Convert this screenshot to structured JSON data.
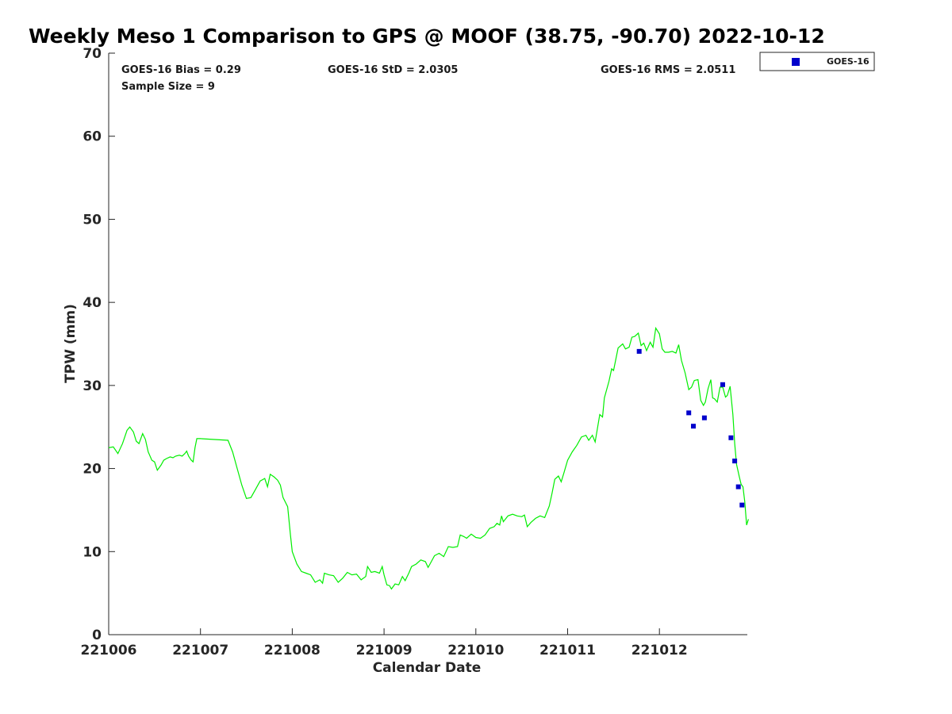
{
  "chart_data": {
    "type": "line",
    "title": "Weekly Meso 1 Comparison to GPS @ MOOF (38.75, -90.70) 2022-10-12",
    "xlabel": "Calendar Date",
    "ylabel": "TPW (mm)",
    "ylim": [
      0,
      70
    ],
    "xlim": [
      0,
      6.95
    ],
    "y_ticks": [
      0,
      10,
      20,
      30,
      40,
      50,
      60,
      70
    ],
    "x_ticks": [
      {
        "x": 0,
        "label": "221006"
      },
      {
        "x": 1,
        "label": "221007"
      },
      {
        "x": 2,
        "label": "221008"
      },
      {
        "x": 3,
        "label": "221009"
      },
      {
        "x": 4,
        "label": "221010"
      },
      {
        "x": 5,
        "label": "221011"
      },
      {
        "x": 6,
        "label": "221012"
      }
    ],
    "stats": {
      "bias": "GOES-16 Bias = 0.29",
      "std": "GOES-16 StD = 2.0305",
      "rms": "GOES-16 RMS = 2.0511",
      "sample": "Sample Size = 9"
    },
    "grid": false,
    "legend_position": "top-right outside plot",
    "series": [
      {
        "color": "#00ee00",
        "kind": "line",
        "points": [
          [
            0.0,
            22.5
          ],
          [
            0.05,
            22.6
          ],
          [
            0.1,
            21.8
          ],
          [
            0.15,
            23.0
          ],
          [
            0.2,
            24.6
          ],
          [
            0.23,
            25.0
          ],
          [
            0.27,
            24.4
          ],
          [
            0.3,
            23.3
          ],
          [
            0.33,
            23.0
          ],
          [
            0.37,
            24.2
          ],
          [
            0.4,
            23.5
          ],
          [
            0.43,
            22.0
          ],
          [
            0.47,
            21.0
          ],
          [
            0.5,
            20.8
          ],
          [
            0.53,
            19.8
          ],
          [
            0.57,
            20.4
          ],
          [
            0.6,
            21.0
          ],
          [
            0.63,
            21.2
          ],
          [
            0.67,
            21.4
          ],
          [
            0.7,
            21.3
          ],
          [
            0.73,
            21.5
          ],
          [
            0.77,
            21.6
          ],
          [
            0.8,
            21.5
          ],
          [
            0.83,
            21.8
          ],
          [
            0.85,
            22.1
          ],
          [
            0.87,
            21.5
          ],
          [
            0.9,
            21.0
          ],
          [
            0.92,
            20.8
          ],
          [
            0.94,
            22.5
          ],
          [
            0.96,
            23.6
          ],
          [
            1.0,
            23.6
          ],
          [
            1.3,
            23.4
          ],
          [
            1.35,
            22.0
          ],
          [
            1.4,
            20.0
          ],
          [
            1.45,
            18.0
          ],
          [
            1.5,
            16.4
          ],
          [
            1.55,
            16.5
          ],
          [
            1.6,
            17.5
          ],
          [
            1.65,
            18.5
          ],
          [
            1.7,
            18.8
          ],
          [
            1.73,
            17.8
          ],
          [
            1.76,
            19.3
          ],
          [
            1.8,
            19.0
          ],
          [
            1.84,
            18.6
          ],
          [
            1.87,
            18.0
          ],
          [
            1.9,
            16.5
          ],
          [
            1.95,
            15.4
          ],
          [
            1.98,
            12.0
          ],
          [
            2.0,
            10.0
          ],
          [
            2.05,
            8.5
          ],
          [
            2.1,
            7.6
          ],
          [
            2.15,
            7.4
          ],
          [
            2.2,
            7.2
          ],
          [
            2.25,
            6.3
          ],
          [
            2.3,
            6.6
          ],
          [
            2.33,
            6.2
          ],
          [
            2.35,
            7.4
          ],
          [
            2.4,
            7.2
          ],
          [
            2.45,
            7.1
          ],
          [
            2.5,
            6.3
          ],
          [
            2.55,
            6.8
          ],
          [
            2.6,
            7.5
          ],
          [
            2.65,
            7.2
          ],
          [
            2.7,
            7.3
          ],
          [
            2.75,
            6.6
          ],
          [
            2.8,
            7.0
          ],
          [
            2.82,
            8.2
          ],
          [
            2.86,
            7.5
          ],
          [
            2.9,
            7.6
          ],
          [
            2.95,
            7.4
          ],
          [
            2.98,
            8.2
          ],
          [
            3.0,
            7.2
          ],
          [
            3.03,
            6.0
          ],
          [
            3.06,
            5.9
          ],
          [
            3.08,
            5.5
          ],
          [
            3.12,
            6.1
          ],
          [
            3.16,
            6.0
          ],
          [
            3.2,
            7.0
          ],
          [
            3.23,
            6.5
          ],
          [
            3.27,
            7.4
          ],
          [
            3.3,
            8.2
          ],
          [
            3.35,
            8.5
          ],
          [
            3.4,
            9.0
          ],
          [
            3.45,
            8.8
          ],
          [
            3.48,
            8.1
          ],
          [
            3.5,
            8.5
          ],
          [
            3.55,
            9.5
          ],
          [
            3.6,
            9.8
          ],
          [
            3.65,
            9.4
          ],
          [
            3.7,
            10.6
          ],
          [
            3.75,
            10.5
          ],
          [
            3.8,
            10.6
          ],
          [
            3.83,
            12.0
          ],
          [
            3.87,
            11.8
          ],
          [
            3.9,
            11.6
          ],
          [
            3.95,
            12.1
          ],
          [
            4.0,
            11.7
          ],
          [
            4.05,
            11.6
          ],
          [
            4.1,
            12.0
          ],
          [
            4.15,
            12.8
          ],
          [
            4.2,
            13.0
          ],
          [
            4.23,
            13.4
          ],
          [
            4.26,
            13.2
          ],
          [
            4.28,
            14.3
          ],
          [
            4.3,
            13.6
          ],
          [
            4.35,
            14.3
          ],
          [
            4.4,
            14.5
          ],
          [
            4.45,
            14.3
          ],
          [
            4.5,
            14.2
          ],
          [
            4.53,
            14.4
          ],
          [
            4.56,
            13.0
          ],
          [
            4.6,
            13.5
          ],
          [
            4.65,
            14.0
          ],
          [
            4.7,
            14.3
          ],
          [
            4.75,
            14.1
          ],
          [
            4.8,
            15.5
          ],
          [
            4.83,
            17.0
          ],
          [
            4.86,
            18.7
          ],
          [
            4.9,
            19.1
          ],
          [
            4.93,
            18.4
          ],
          [
            4.96,
            19.5
          ],
          [
            5.0,
            21.0
          ],
          [
            5.05,
            22.0
          ],
          [
            5.1,
            22.8
          ],
          [
            5.15,
            23.8
          ],
          [
            5.2,
            24.0
          ],
          [
            5.23,
            23.4
          ],
          [
            5.27,
            24.0
          ],
          [
            5.3,
            23.2
          ],
          [
            5.35,
            26.5
          ],
          [
            5.38,
            26.2
          ],
          [
            5.4,
            28.5
          ],
          [
            5.45,
            30.5
          ],
          [
            5.48,
            32.0
          ],
          [
            5.5,
            31.8
          ],
          [
            5.55,
            34.5
          ],
          [
            5.6,
            35.0
          ],
          [
            5.63,
            34.4
          ],
          [
            5.67,
            34.6
          ],
          [
            5.7,
            35.8
          ],
          [
            5.73,
            35.9
          ],
          [
            5.77,
            36.3
          ],
          [
            5.8,
            34.8
          ],
          [
            5.83,
            35.1
          ],
          [
            5.86,
            34.2
          ],
          [
            5.9,
            35.2
          ],
          [
            5.93,
            34.6
          ],
          [
            5.96,
            36.9
          ],
          [
            6.0,
            36.2
          ],
          [
            6.03,
            34.4
          ],
          [
            6.06,
            34.0
          ],
          [
            6.1,
            34.0
          ],
          [
            6.14,
            34.1
          ],
          [
            6.18,
            33.9
          ],
          [
            6.21,
            34.9
          ],
          [
            6.24,
            33.0
          ],
          [
            6.28,
            31.5
          ],
          [
            6.32,
            29.5
          ],
          [
            6.35,
            29.8
          ],
          [
            6.38,
            30.6
          ],
          [
            6.42,
            30.7
          ],
          [
            6.45,
            28.2
          ],
          [
            6.48,
            27.6
          ],
          [
            6.5,
            28.0
          ],
          [
            6.53,
            29.6
          ],
          [
            6.56,
            30.7
          ],
          [
            6.58,
            28.5
          ],
          [
            6.6,
            28.4
          ],
          [
            6.63,
            28.0
          ],
          [
            6.66,
            29.8
          ],
          [
            6.69,
            29.8
          ],
          [
            6.72,
            28.6
          ],
          [
            6.74,
            28.8
          ],
          [
            6.77,
            29.9
          ],
          [
            6.8,
            26.5
          ],
          [
            6.82,
            23.0
          ],
          [
            6.84,
            20.5
          ],
          [
            6.87,
            19.0
          ],
          [
            6.89,
            18.1
          ],
          [
            6.91,
            17.8
          ],
          [
            6.93,
            16.0
          ],
          [
            6.95,
            13.2
          ],
          [
            6.97,
            13.9
          ]
        ]
      },
      {
        "name": "GOES-16",
        "color": "#0000cc",
        "kind": "scatter",
        "points": [
          [
            5.78,
            34.1
          ],
          [
            6.32,
            26.7
          ],
          [
            6.37,
            25.1
          ],
          [
            6.49,
            26.1
          ],
          [
            6.69,
            30.1
          ],
          [
            6.78,
            23.7
          ],
          [
            6.82,
            20.9
          ],
          [
            6.86,
            17.8
          ],
          [
            6.9,
            15.6
          ]
        ]
      }
    ]
  }
}
